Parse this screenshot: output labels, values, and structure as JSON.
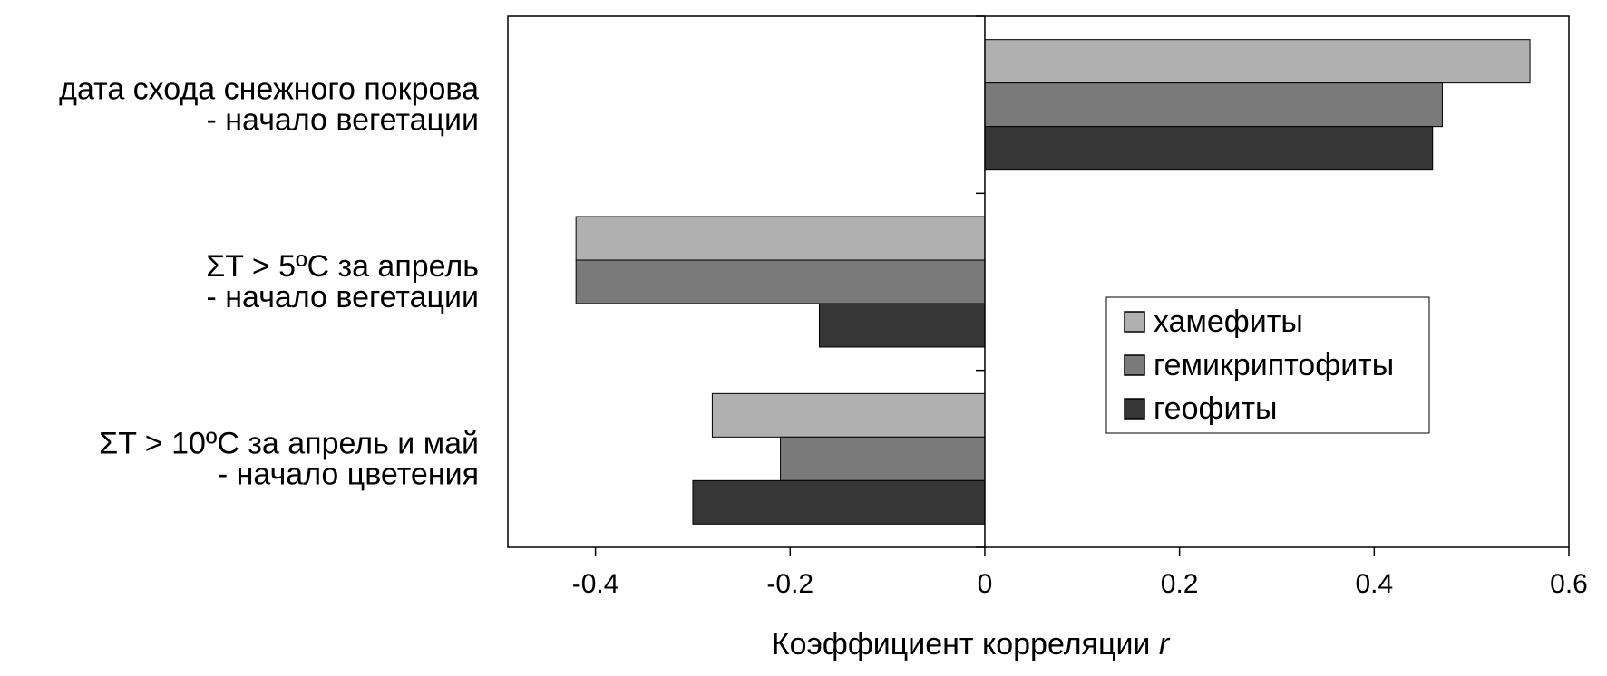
{
  "chart_data": {
    "type": "bar",
    "orientation": "horizontal",
    "categories": [
      [
        "дата схода снежного покрова",
        "- начало вегетации"
      ],
      [
        "ΣT > 5ºC за апрель",
        "- начало вегетации"
      ],
      [
        "ΣT > 10ºC за апрель и май",
        "- начало цветения"
      ]
    ],
    "series": [
      {
        "name": "хамефиты",
        "color": "#b0b0b0",
        "values": [
          0.56,
          -0.42,
          -0.28
        ]
      },
      {
        "name": "гемикриптофиты",
        "color": "#7a7a7a",
        "values": [
          0.47,
          -0.42,
          -0.21
        ]
      },
      {
        "name": "геофиты",
        "color": "#363636",
        "values": [
          0.46,
          -0.17,
          -0.3
        ]
      }
    ],
    "xlabel": "Коэффициент корреляции",
    "xlabel_italic": "r",
    "xlim": [
      -0.49,
      0.6
    ],
    "xticks": [
      -0.4,
      -0.2,
      0,
      0.2,
      0.4,
      0.6
    ],
    "xtick_labels": [
      "-0.4",
      "-0.2",
      "0",
      "0.2",
      "0.4",
      "0.6"
    ],
    "grid": false,
    "legend_position": "center-right"
  }
}
